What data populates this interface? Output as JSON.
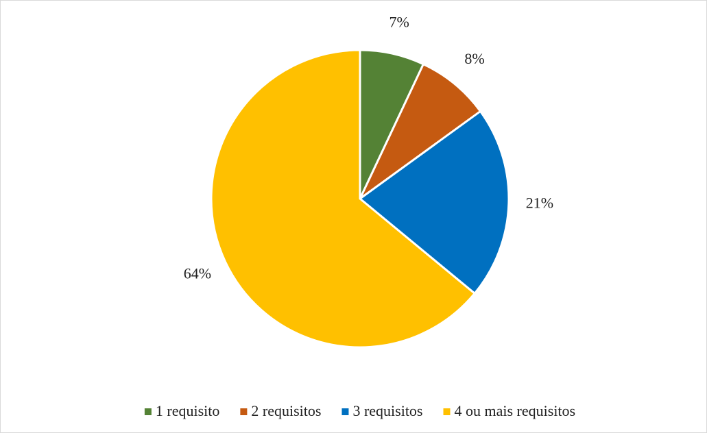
{
  "chart_data": {
    "type": "pie",
    "categories": [
      "1 requisito",
      "2 requisitos",
      "3 requisitos",
      "4 ou mais requisitos"
    ],
    "values": [
      7,
      8,
      21,
      64
    ],
    "value_labels": [
      "7%",
      "8%",
      "21%",
      "64%"
    ],
    "colors": [
      "#548235",
      "#c55a11",
      "#0070c0",
      "#ffc000"
    ],
    "legend": "bottom"
  }
}
